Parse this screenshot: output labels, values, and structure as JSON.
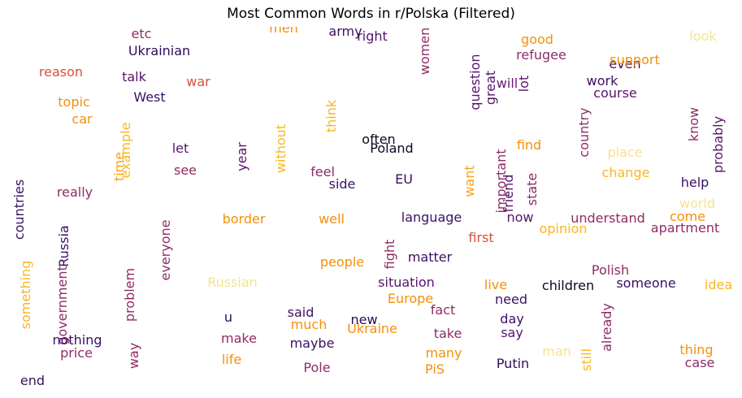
{
  "title": "Most Common Words in r/Polska (Filtered)",
  "chart_data": {
    "type": "wordcloud",
    "title": "Most Common Words in r/Polska (Filtered)",
    "colormap": "inferno",
    "words": [
      {
        "text": "Poland",
        "color": "#0a0722",
        "vertical": false
      },
      {
        "text": "Ukraine",
        "color": "#f58f0b",
        "vertical": false
      },
      {
        "text": "will",
        "color": "#6c1a70",
        "vertical": false
      },
      {
        "text": "people",
        "color": "#f58f0b",
        "vertical": false
      },
      {
        "text": "Polish",
        "color": "#8e2c67",
        "vertical": false
      },
      {
        "text": "Ukrainian",
        "color": "#2e0c58",
        "vertical": false
      },
      {
        "text": "Russia",
        "color": "#3b0f63",
        "vertical": true
      },
      {
        "text": "even",
        "color": "#3b0f63",
        "vertical": false
      },
      {
        "text": "know",
        "color": "#8e2c67",
        "vertical": true
      },
      {
        "text": "war",
        "color": "#d74f3f",
        "vertical": false
      },
      {
        "text": "think",
        "color": "#f9b620",
        "vertical": true
      },
      {
        "text": "year",
        "color": "#56136c",
        "vertical": true
      },
      {
        "text": "time",
        "color": "#f8a114",
        "vertical": true
      },
      {
        "text": "want",
        "color": "#f8a114",
        "vertical": true
      },
      {
        "text": "u",
        "color": "#2e0c58",
        "vertical": false
      },
      {
        "text": "right",
        "color": "#56136c",
        "vertical": false
      },
      {
        "text": "look",
        "color": "#f6e38e",
        "vertical": false
      },
      {
        "text": "countries",
        "color": "#3b0f63",
        "vertical": true
      },
      {
        "text": "country",
        "color": "#8e2c67",
        "vertical": true
      },
      {
        "text": "work",
        "color": "#3b0f63",
        "vertical": false
      },
      {
        "text": "talk",
        "color": "#56136c",
        "vertical": false
      },
      {
        "text": "probably",
        "color": "#56136c",
        "vertical": true
      },
      {
        "text": "often",
        "color": "#0a0722",
        "vertical": false
      },
      {
        "text": "let",
        "color": "#56136c",
        "vertical": false
      },
      {
        "text": "see",
        "color": "#8e2c67",
        "vertical": false
      },
      {
        "text": "help",
        "color": "#3b0f63",
        "vertical": false
      },
      {
        "text": "without",
        "color": "#f9b620",
        "vertical": true
      },
      {
        "text": "support",
        "color": "#f58f0b",
        "vertical": false
      },
      {
        "text": "question",
        "color": "#56136c",
        "vertical": true
      },
      {
        "text": "good",
        "color": "#f58f0b",
        "vertical": false
      },
      {
        "text": "lot",
        "color": "#56136c",
        "vertical": true
      },
      {
        "text": "course",
        "color": "#56136c",
        "vertical": false
      },
      {
        "text": "men",
        "color": "#f58f0b",
        "vertical": false
      },
      {
        "text": "army",
        "color": "#3b0f63",
        "vertical": false
      },
      {
        "text": "women",
        "color": "#8e2c67",
        "vertical": true
      },
      {
        "text": "great",
        "color": "#56136c",
        "vertical": true
      },
      {
        "text": "refugee",
        "color": "#8e2c67",
        "vertical": false
      },
      {
        "text": "reason",
        "color": "#d74f3f",
        "vertical": false
      },
      {
        "text": "topic",
        "color": "#f58f0b",
        "vertical": false
      },
      {
        "text": "West",
        "color": "#3b0f63",
        "vertical": false
      },
      {
        "text": "car",
        "color": "#f58f0b",
        "vertical": false
      },
      {
        "text": "example",
        "color": "#f9b620",
        "vertical": true
      },
      {
        "text": "feel",
        "color": "#8e2c67",
        "vertical": false
      },
      {
        "text": "EU",
        "color": "#3b0f63",
        "vertical": false
      },
      {
        "text": "side",
        "color": "#3b0f63",
        "vertical": false
      },
      {
        "text": "find",
        "color": "#f58f0b",
        "vertical": false
      },
      {
        "text": "place",
        "color": "#f6e38e",
        "vertical": false
      },
      {
        "text": "change",
        "color": "#f9b620",
        "vertical": false
      },
      {
        "text": "friend",
        "color": "#56136c",
        "vertical": true
      },
      {
        "text": "important",
        "color": "#8e2c67",
        "vertical": true
      },
      {
        "text": "state",
        "color": "#8e2c67",
        "vertical": true
      },
      {
        "text": "really",
        "color": "#8e2c67",
        "vertical": false
      },
      {
        "text": "world",
        "color": "#f6e38e",
        "vertical": false
      },
      {
        "text": "border",
        "color": "#f58f0b",
        "vertical": false
      },
      {
        "text": "well",
        "color": "#f58f0b",
        "vertical": false
      },
      {
        "text": "language",
        "color": "#3b0f63",
        "vertical": false
      },
      {
        "text": "now",
        "color": "#56136c",
        "vertical": false
      },
      {
        "text": "understand",
        "color": "#8e2c67",
        "vertical": false
      },
      {
        "text": "come",
        "color": "#f58f0b",
        "vertical": false
      },
      {
        "text": "everyone",
        "color": "#8e2c67",
        "vertical": true
      },
      {
        "text": "something",
        "color": "#f9b620",
        "vertical": true
      },
      {
        "text": "government",
        "color": "#8e2c67",
        "vertical": true
      },
      {
        "text": "problem",
        "color": "#8e2c67",
        "vertical": true
      },
      {
        "text": "Russian",
        "color": "#f6e38e",
        "vertical": false
      },
      {
        "text": "situation",
        "color": "#56136c",
        "vertical": false
      },
      {
        "text": "first",
        "color": "#d74f3f",
        "vertical": false
      },
      {
        "text": "fight",
        "color": "#8e2c67",
        "vertical": true
      },
      {
        "text": "opinion",
        "color": "#f9b620",
        "vertical": false
      },
      {
        "text": "apartment",
        "color": "#8e2c67",
        "vertical": false
      },
      {
        "text": "live",
        "color": "#f58f0b",
        "vertical": false
      },
      {
        "text": "someone",
        "color": "#3b0f63",
        "vertical": false
      },
      {
        "text": "children",
        "color": "#0a0722",
        "vertical": false
      },
      {
        "text": "idea",
        "color": "#f9b620",
        "vertical": false
      },
      {
        "text": "matter",
        "color": "#3b0f63",
        "vertical": false
      },
      {
        "text": "fact",
        "color": "#8e2c67",
        "vertical": false
      },
      {
        "text": "need",
        "color": "#3b0f63",
        "vertical": false
      },
      {
        "text": "new",
        "color": "#2e0c58",
        "vertical": false
      },
      {
        "text": "much",
        "color": "#f58f0b",
        "vertical": false
      },
      {
        "text": "maybe",
        "color": "#3b0f63",
        "vertical": false
      },
      {
        "text": "make",
        "color": "#8e2c67",
        "vertical": false
      },
      {
        "text": "say",
        "color": "#56136c",
        "vertical": false
      },
      {
        "text": "day",
        "color": "#3b0f63",
        "vertical": false
      },
      {
        "text": "take",
        "color": "#8e2c67",
        "vertical": false
      },
      {
        "text": "Europe",
        "color": "#f58f0b",
        "vertical": false
      },
      {
        "text": "said",
        "color": "#3b0f63",
        "vertical": false
      },
      {
        "text": "nothing",
        "color": "#3b0f63",
        "vertical": false
      },
      {
        "text": "many",
        "color": "#f58f0b",
        "vertical": false
      },
      {
        "text": "already",
        "color": "#8e2c67",
        "vertical": true
      },
      {
        "text": "still",
        "color": "#f9b620",
        "vertical": true
      },
      {
        "text": "thing",
        "color": "#f58f0b",
        "vertical": false
      },
      {
        "text": "case",
        "color": "#8e2c67",
        "vertical": false
      },
      {
        "text": "man",
        "color": "#f6e38e",
        "vertical": false
      },
      {
        "text": "life",
        "color": "#f58f0b",
        "vertical": false
      },
      {
        "text": "Pole",
        "color": "#8e2c67",
        "vertical": false
      },
      {
        "text": "Putin",
        "color": "#2e0c58",
        "vertical": false
      },
      {
        "text": "PiS",
        "color": "#f58f0b",
        "vertical": false
      },
      {
        "text": "price",
        "color": "#8e2c67",
        "vertical": false
      },
      {
        "text": "way",
        "color": "#8e2c67",
        "vertical": true
      },
      {
        "text": "end",
        "color": "#3b0f63",
        "vertical": false
      },
      {
        "text": "etc",
        "color": "#8e2c67",
        "vertical": false
      }
    ]
  }
}
